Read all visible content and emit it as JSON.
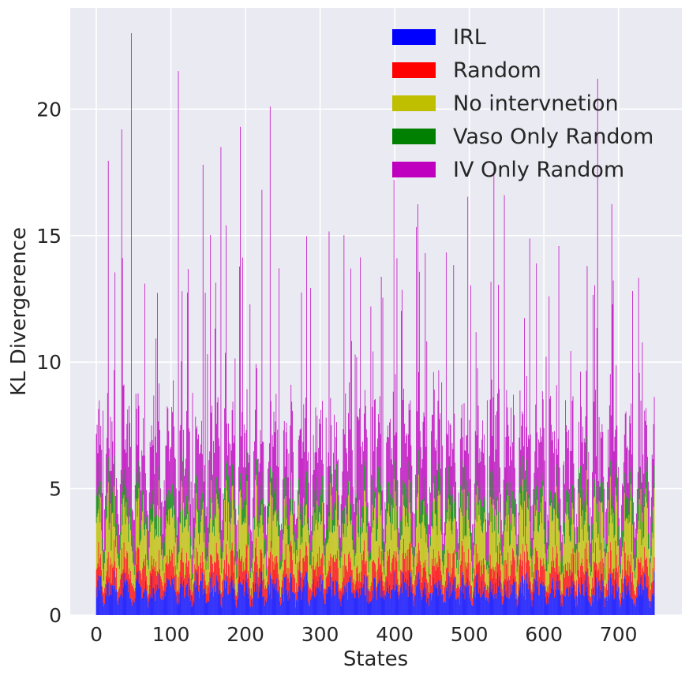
{
  "chart_data": {
    "type": "bar",
    "stacked": true,
    "title": "",
    "xlabel": "States",
    "ylabel": "KL Divergerence",
    "xlim": [
      -35,
      785
    ],
    "ylim": [
      0,
      24
    ],
    "n_states": 749,
    "xticks": [
      0,
      100,
      200,
      300,
      400,
      500,
      600,
      700
    ],
    "yticks": [
      0,
      5,
      10,
      15,
      20
    ],
    "grid": true,
    "legend_position": "top-right",
    "series": [
      {
        "name": "IRL",
        "color": "#0000ff",
        "mean": 1.3,
        "min": 0.2,
        "max": 2.6
      },
      {
        "name": "Random",
        "color": "#ff0000",
        "mean": 1.1,
        "min": 0.2,
        "max": 2.3
      },
      {
        "name": "No intervnetion",
        "color": "#bfbf00",
        "mean": 2.2,
        "min": 0.5,
        "max": 4.8
      },
      {
        "name": "Vaso Only Random",
        "color": "#008000",
        "mean": 1.0,
        "min": 0.1,
        "max": 3.5
      },
      {
        "name": "IV Only Random",
        "color": "#bf00bf",
        "mean": 2.8,
        "min": 0.5,
        "max": 9.0
      }
    ],
    "peaks": [
      {
        "x": 47,
        "total": 23.0
      },
      {
        "x": 110,
        "total": 21.5
      },
      {
        "x": 672,
        "total": 21.2
      },
      {
        "x": 233,
        "total": 20.1
      },
      {
        "x": 34,
        "total": 19.2
      },
      {
        "x": 193,
        "total": 19.3
      },
      {
        "x": 167,
        "total": 18.5
      },
      {
        "x": 533,
        "total": 17.9
      },
      {
        "x": 143,
        "total": 17.8
      },
      {
        "x": 547,
        "total": 16.6
      }
    ]
  },
  "legend": {
    "items": [
      {
        "label": "IRL",
        "color": "#0000ff"
      },
      {
        "label": "Random",
        "color": "#ff0000"
      },
      {
        "label": "No intervnetion",
        "color": "#bfbf00"
      },
      {
        "label": "Vaso Only Random",
        "color": "#008000"
      },
      {
        "label": "IV Only Random",
        "color": "#bf00bf"
      }
    ]
  },
  "axes": {
    "xlabel": "States",
    "ylabel": "KL Divergerence",
    "xtick_labels": [
      "0",
      "100",
      "200",
      "300",
      "400",
      "500",
      "600",
      "700"
    ],
    "ytick_labels": [
      "0",
      "5",
      "10",
      "15",
      "20"
    ]
  },
  "style": {
    "plot_background": "#eaeaf2",
    "grid_color": "#ffffff",
    "text_color": "#262626"
  }
}
